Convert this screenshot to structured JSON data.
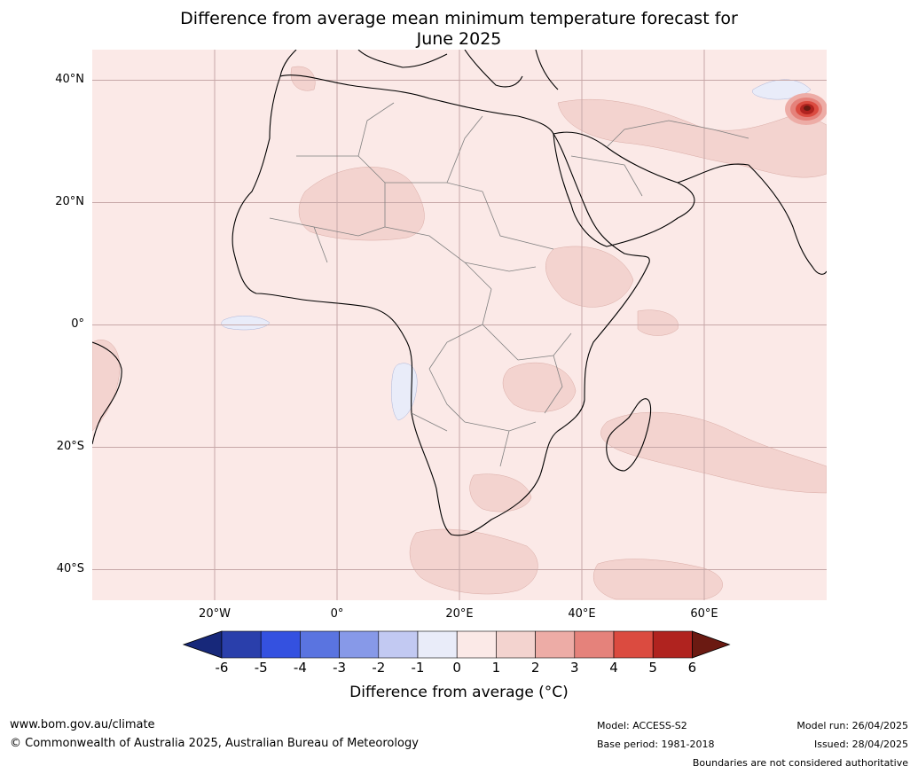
{
  "title": {
    "line1": "Difference from average mean minimum temperature forecast for",
    "line2": "June 2025"
  },
  "map": {
    "lat_labels": [
      "40°N",
      "20°N",
      "0°",
      "20°S",
      "40°S"
    ],
    "lon_labels": [
      "20°W",
      "0°",
      "20°E",
      "40°E",
      "60°E"
    ],
    "extent": {
      "lon": [
        -40,
        80
      ],
      "lat": [
        -45,
        45
      ]
    },
    "gridlines": true,
    "colors": {
      "ocean_fill": "#fbe9e7",
      "land_fill": "#fbe9e7",
      "anomaly_1_2": "#f3d3cf",
      "anomaly_neg": "#e9ecf9",
      "hotspot": "#b0231f",
      "coastline": "#000000",
      "borders": "#808080",
      "grid": "#c7a8a8"
    }
  },
  "colorbar": {
    "ticks": [
      "-6",
      "-5",
      "-4",
      "-3",
      "-2",
      "-1",
      "0",
      "1",
      "2",
      "3",
      "4",
      "5",
      "6"
    ],
    "colors": [
      "#17287a",
      "#2a3fab",
      "#3451e0",
      "#5a74e0",
      "#8799e8",
      "#c2c9f2",
      "#e9ecf9",
      "#fbe9e7",
      "#f3d3cf",
      "#edaca6",
      "#e5827b",
      "#db4b40",
      "#b0231f",
      "#6b1a12"
    ],
    "label": "Difference from average (°C)"
  },
  "footer": {
    "website": "www.bom.gov.au/climate",
    "copyright": "© Commonwealth of Australia 2025, Australian Bureau of Meteorology",
    "model": "Model: ACCESS-S2",
    "base_period": "Base period: 1981-2018",
    "model_run": "Model run: 26/04/2025",
    "issued": "Issued: 28/04/2025",
    "disclaimer": "Boundaries are not considered authoritative"
  }
}
